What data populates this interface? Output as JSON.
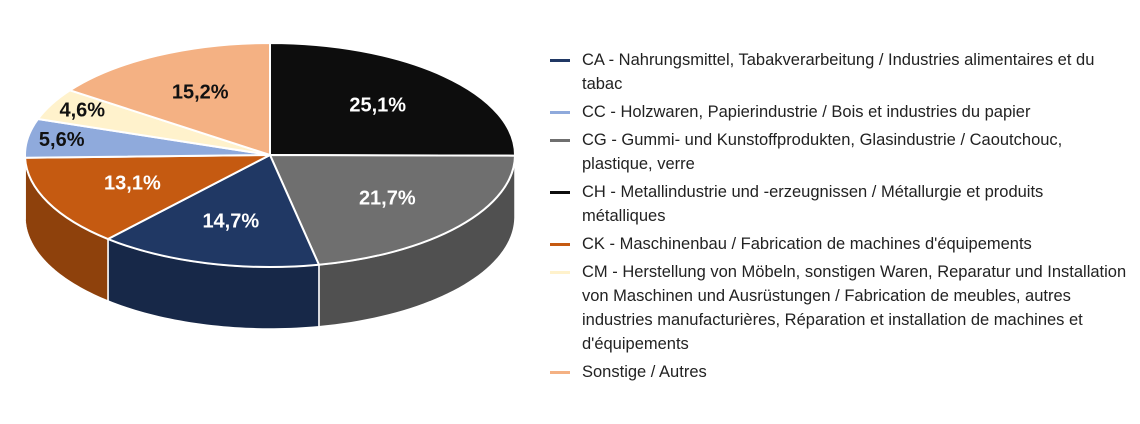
{
  "chart_data": {
    "type": "pie",
    "style": "3d",
    "start_angle_deg": 90,
    "direction": "clockwise",
    "slices": [
      {
        "label": "CH - Metallindustrie und -erzeugnissen / Métallurgie et produits métalliques",
        "value": 25.1,
        "display": "25,1%",
        "color": "#0d0d0d",
        "text_color": "#ffffff"
      },
      {
        "label": "CG - Gummi- und Kunstoffprodukten, Glasindustrie / Caoutchouc, plastique, verre",
        "value": 21.7,
        "display": "21,7%",
        "color": "#6f6f6f",
        "text_color": "#ffffff"
      },
      {
        "label": "CA - Nahrungsmittel, Tabakverarbeitung / Industries alimentaires et du tabac",
        "value": 14.7,
        "display": "14,7%",
        "color": "#203864",
        "text_color": "#ffffff"
      },
      {
        "label": "CK - Maschinenbau / Fabrication de machines d'équipements",
        "value": 13.1,
        "display": "13,1%",
        "color": "#c55a11",
        "text_color": "#ffffff"
      },
      {
        "label": "CC - Holzwaren, Papierindustrie / Bois et industries du papier",
        "value": 5.6,
        "display": "5,6%",
        "color": "#8faadc",
        "text_color": "#111111"
      },
      {
        "label": "CM - Herstellung von Möbeln, sonstigen Waren, Reparatur und Installation von Maschinen und Ausrüstungen / Fabrication de meubles, autres industries manufacturières, Réparation et installation de machines et d'équipements",
        "value": 4.6,
        "display": "4,6%",
        "color": "#fff2cc",
        "text_color": "#111111"
      },
      {
        "label": "Sonstige / Autres",
        "value": 15.2,
        "display": "15,2%",
        "color": "#f4b183",
        "text_color": "#111111"
      }
    ],
    "legend_position": "right",
    "legend": [
      {
        "label": "CA - Nahrungsmittel, Tabakverarbeitung / Industries alimentaires et du tabac",
        "color": "#203864"
      },
      {
        "label": "CC - Holzwaren, Papierindustrie / Bois et industries du papier",
        "color": "#8faadc"
      },
      {
        "label": "CG - Gummi- und Kunstoffprodukten, Glasindustrie / Caoutchouc, plastique, verre",
        "color": "#6f6f6f"
      },
      {
        "label": "CH - Metallindustrie und -erzeugnissen / Métallurgie et produits métalliques",
        "color": "#0d0d0d"
      },
      {
        "label": "CK - Maschinenbau / Fabrication de machines d'équipements",
        "color": "#c55a11"
      },
      {
        "label": "CM - Herstellung von Möbeln, sonstigen Waren, Reparatur und Installation von Maschinen und Ausrüstungen / Fabrication de meubles, autres industries manufacturières, Réparation et installation de machines et d'équipements",
        "color": "#fff2cc"
      },
      {
        "label": "Sonstige / Autres",
        "color": "#f4b183"
      }
    ]
  }
}
